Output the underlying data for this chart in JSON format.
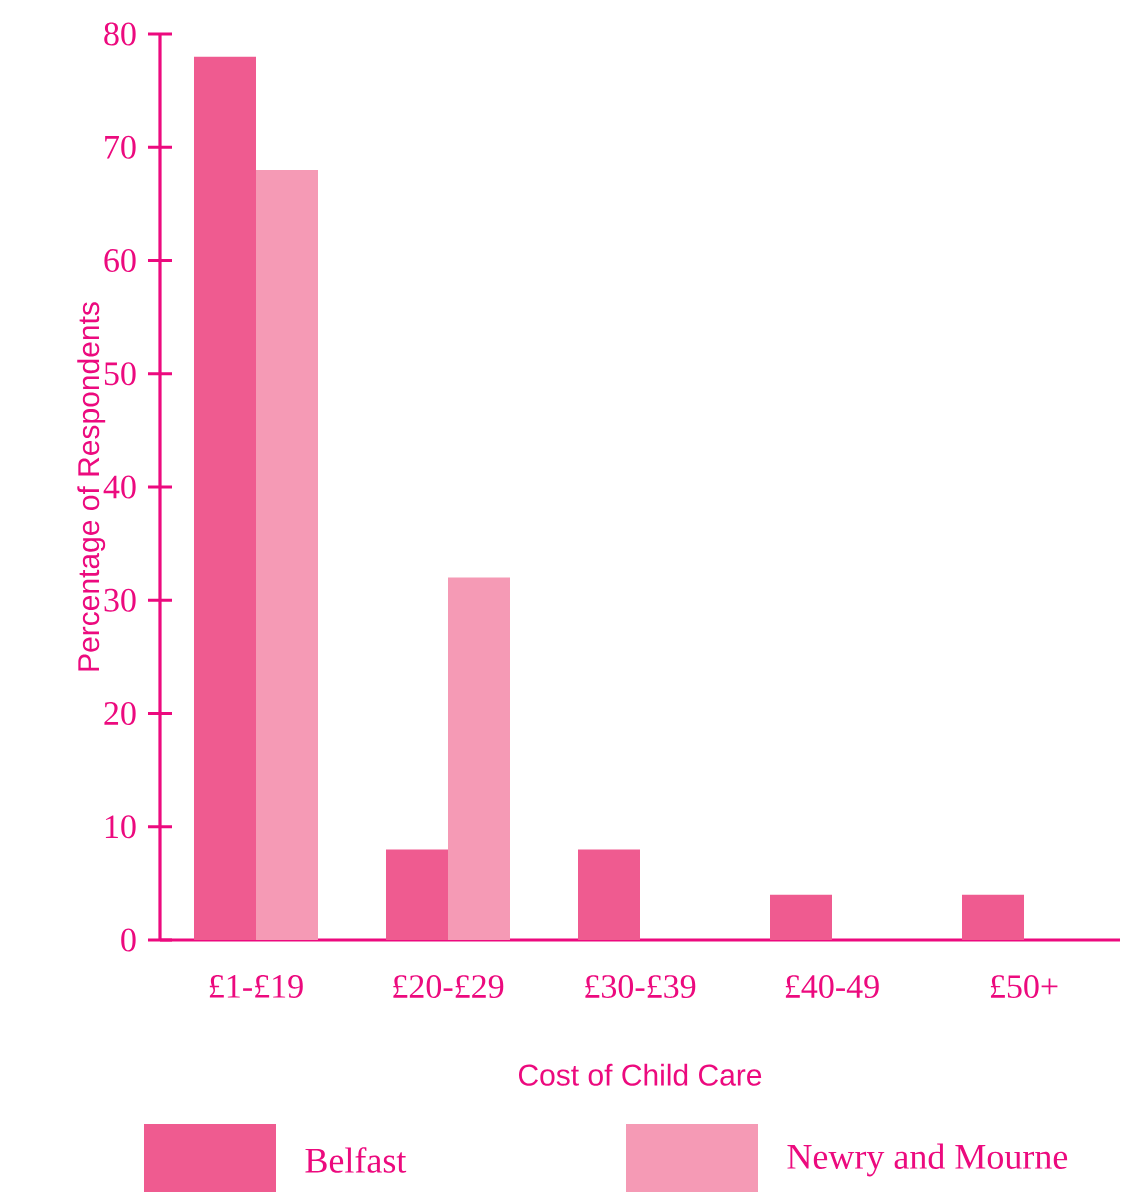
{
  "chart_data": {
    "type": "bar",
    "xlabel": "Cost of Child Care",
    "ylabel": "Percentage of Respondents",
    "categories": [
      "£1-£19",
      "£20-£29",
      "£30-£39",
      "£40-49",
      "£50+"
    ],
    "series": [
      {
        "name": "Belfast",
        "color": "#ef5b90",
        "values": [
          78,
          8,
          8,
          4,
          4
        ]
      },
      {
        "name": "Newry and Mourne",
        "color": "#f59ab5",
        "values": [
          68,
          32,
          0,
          0,
          0
        ]
      }
    ],
    "ylim": [
      0,
      80
    ],
    "yticks": [
      0,
      10,
      20,
      30,
      40,
      50,
      60,
      70,
      80
    ],
    "legend": "bottom",
    "grid": false
  }
}
